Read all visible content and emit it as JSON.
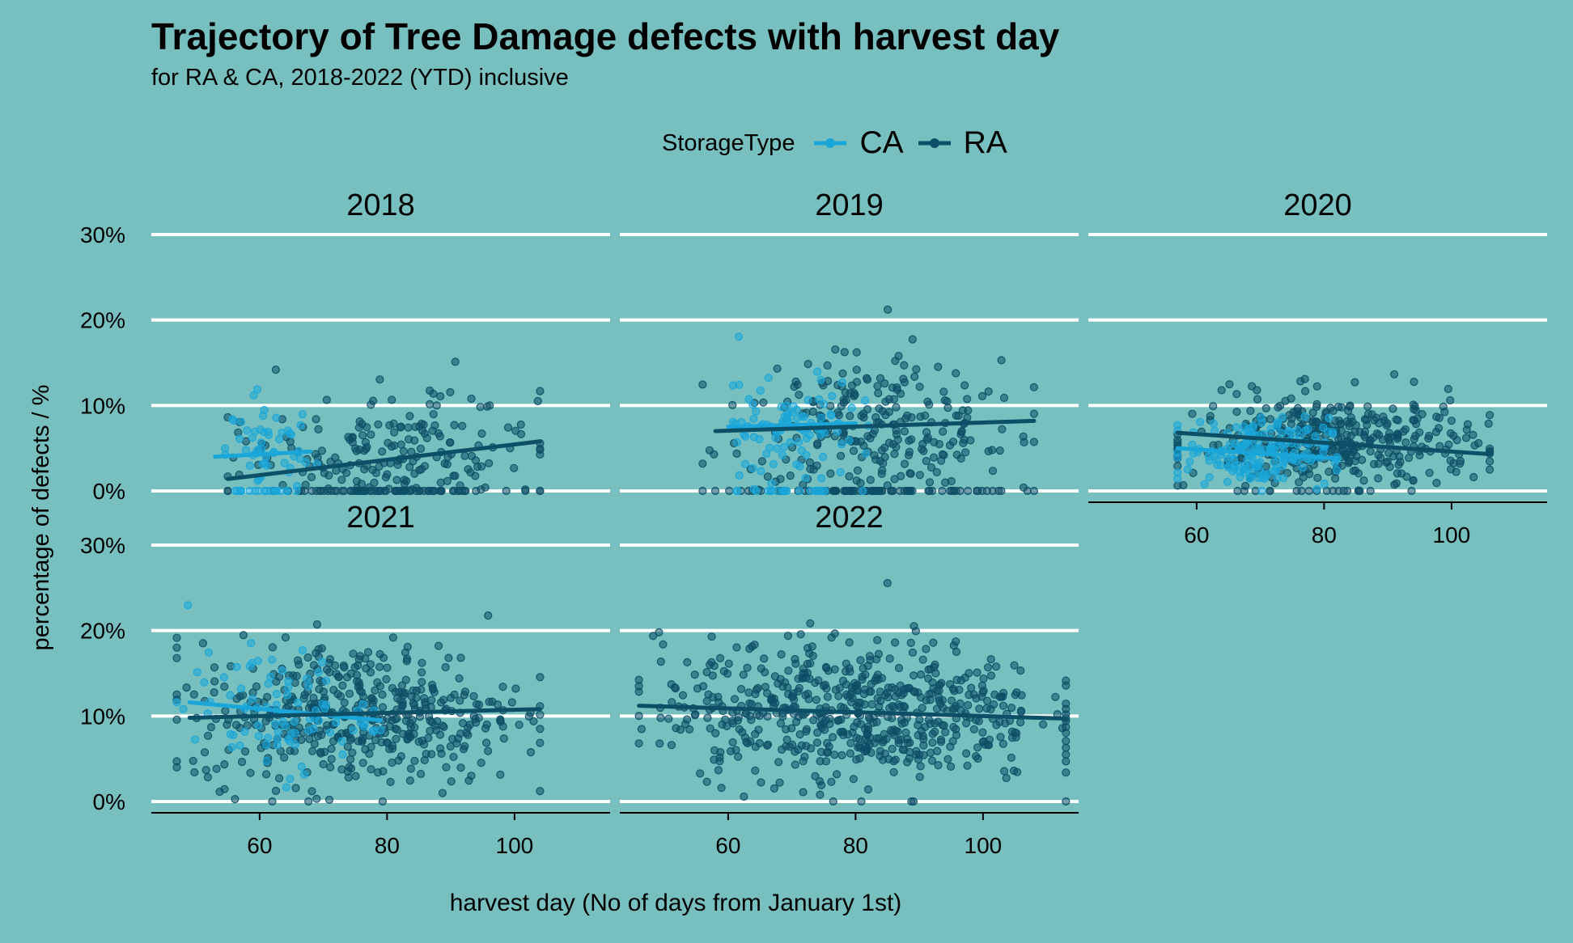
{
  "chart_data": {
    "type": "scatter",
    "title": "Trajectory of Tree Damage defects with harvest day",
    "subtitle": "for RA & CA, 2018-2022 (YTD) inclusive",
    "xlabel": "harvest day (No of days from January 1st)",
    "ylabel": "percentage of defects / %",
    "xlim": [
      43,
      115
    ],
    "ylim": [
      0,
      30
    ],
    "x_ticks": [
      60,
      80,
      100
    ],
    "y_ticks": [
      0,
      10,
      20,
      30
    ],
    "y_tick_labels": [
      "0%",
      "10%",
      "20%",
      "30%"
    ],
    "grid": "horizontal major",
    "legend": {
      "title": "StorageType",
      "position": "top",
      "entries": [
        {
          "label": "CA",
          "color": "#1aa6d9"
        },
        {
          "label": "RA",
          "color": "#0d4f66"
        }
      ]
    },
    "facets": [
      {
        "panel": "2018",
        "series": [
          {
            "name": "CA",
            "x_range": [
              52,
              69
            ],
            "y_mean": 4.5,
            "y_sd": 3.5,
            "n": 70,
            "trend": [
              [
                53,
                4.0
              ],
              [
                68,
                4.6
              ]
            ]
          },
          {
            "name": "RA",
            "x_range": [
              55,
              104
            ],
            "y_mean": 4.0,
            "y_sd": 4.0,
            "n": 260,
            "trend": [
              [
                55,
                1.4
              ],
              [
                104,
                5.8
              ]
            ]
          }
        ]
      },
      {
        "panel": "2019",
        "series": [
          {
            "name": "CA",
            "x_range": [
              58,
              82
            ],
            "y_mean": 7.5,
            "y_sd": 3.0,
            "n": 120,
            "trend": [
              [
                60,
                7.5
              ],
              [
                80,
                7.9
              ]
            ]
          },
          {
            "name": "RA",
            "x_range": [
              56,
              108
            ],
            "y_mean": 7.0,
            "y_sd": 4.5,
            "n": 330,
            "trend": [
              [
                58,
                7.0
              ],
              [
                108,
                8.2
              ]
            ]
          }
        ]
      },
      {
        "panel": "2020",
        "series": [
          {
            "name": "CA",
            "x_range": [
              57,
              82
            ],
            "y_mean": 4.5,
            "y_sd": 2.0,
            "n": 180,
            "trend": [
              [
                57,
                5.0
              ],
              [
                82,
                3.8
              ]
            ]
          },
          {
            "name": "RA",
            "x_range": [
              57,
              106
            ],
            "y_mean": 5.5,
            "y_sd": 2.8,
            "n": 420,
            "trend": [
              [
                57,
                6.8
              ],
              [
                106,
                4.3
              ]
            ]
          }
        ]
      },
      {
        "panel": "2021",
        "series": [
          {
            "name": "CA",
            "x_range": [
              47,
              79
            ],
            "y_mean": 10.5,
            "y_sd": 3.5,
            "n": 90,
            "trend": [
              [
                49,
                11.6
              ],
              [
                79,
                9.5
              ]
            ]
          },
          {
            "name": "RA",
            "x_range": [
              47,
              104
            ],
            "y_mean": 10.3,
            "y_sd": 4.2,
            "n": 470,
            "trend": [
              [
                49,
                9.8
              ],
              [
                104,
                10.8
              ]
            ]
          }
        ]
      },
      {
        "panel": "2022",
        "series": [
          {
            "name": "RA",
            "x_range": [
              46,
              113
            ],
            "y_mean": 10.5,
            "y_sd": 4.2,
            "n": 620,
            "trend": [
              [
                46,
                11.2
              ],
              [
                113,
                9.7
              ]
            ]
          }
        ]
      }
    ]
  }
}
